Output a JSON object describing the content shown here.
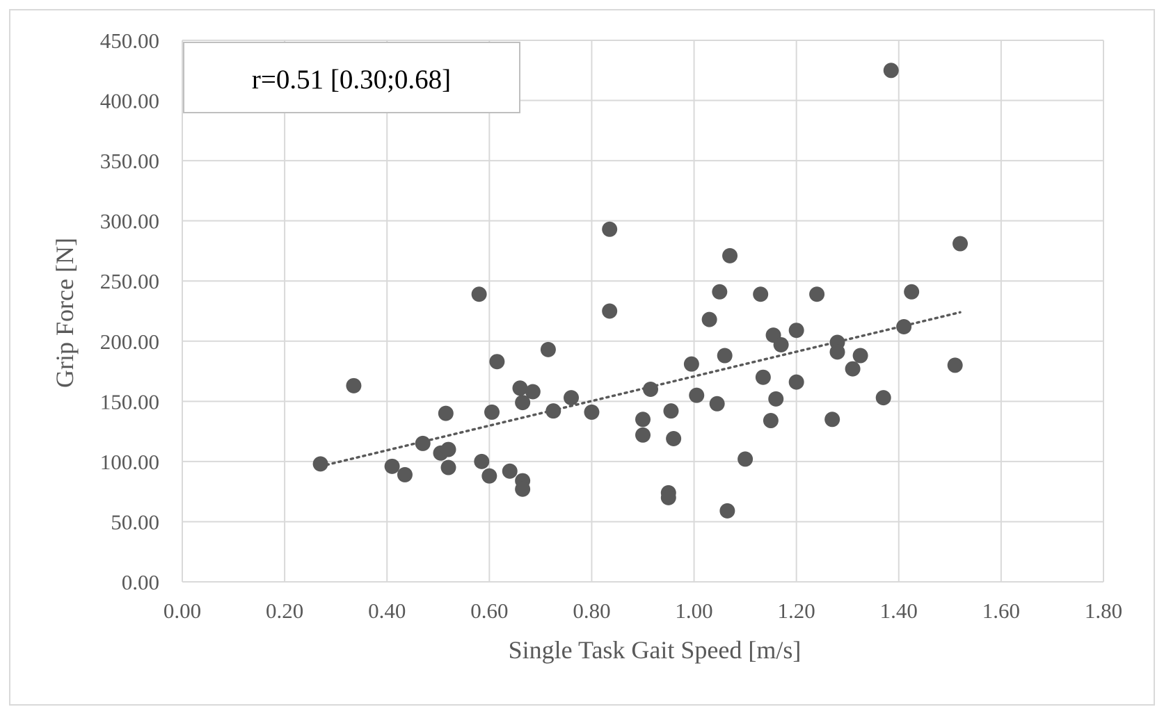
{
  "chart_data": {
    "type": "scatter",
    "title": "",
    "xlabel": "Single Task Gait Speed  [m/s]",
    "ylabel": "Grip Force [N]",
    "xlim": [
      0,
      1.8
    ],
    "ylim": [
      0,
      450
    ],
    "x_ticks": [
      "0.00",
      "0.20",
      "0.40",
      "0.60",
      "0.80",
      "1.00",
      "1.20",
      "1.40",
      "1.60",
      "1.80"
    ],
    "y_ticks": [
      "0.00",
      "50.00",
      "100.00",
      "150.00",
      "200.00",
      "250.00",
      "300.00",
      "350.00",
      "400.00",
      "450.00"
    ],
    "grid": true,
    "legend": "none",
    "annotation": "r=0.51 [0.30;0.68]",
    "colors": {
      "points": "#595959",
      "trendline": "#595959",
      "grid": "#d9d9d9",
      "axis_text": "#595959"
    },
    "trendline": {
      "style": "dotted",
      "x": [
        0.27,
        1.52
      ],
      "y": [
        96,
        224
      ]
    },
    "series": [
      {
        "points": [
          [
            0.27,
            98
          ],
          [
            0.335,
            163
          ],
          [
            0.41,
            96
          ],
          [
            0.435,
            89
          ],
          [
            0.47,
            115
          ],
          [
            0.505,
            107
          ],
          [
            0.515,
            140
          ],
          [
            0.52,
            110
          ],
          [
            0.52,
            95
          ],
          [
            0.58,
            239
          ],
          [
            0.585,
            100
          ],
          [
            0.6,
            88
          ],
          [
            0.605,
            141
          ],
          [
            0.615,
            183
          ],
          [
            0.64,
            92
          ],
          [
            0.66,
            161
          ],
          [
            0.665,
            149
          ],
          [
            0.665,
            84
          ],
          [
            0.665,
            77
          ],
          [
            0.685,
            158
          ],
          [
            0.715,
            193
          ],
          [
            0.725,
            142
          ],
          [
            0.76,
            153
          ],
          [
            0.8,
            141
          ],
          [
            0.835,
            293
          ],
          [
            0.835,
            225
          ],
          [
            0.9,
            135
          ],
          [
            0.9,
            122
          ],
          [
            0.915,
            160
          ],
          [
            0.95,
            74
          ],
          [
            0.95,
            70
          ],
          [
            0.955,
            142
          ],
          [
            0.96,
            119
          ],
          [
            0.995,
            181
          ],
          [
            1.005,
            155
          ],
          [
            1.03,
            218
          ],
          [
            1.045,
            148
          ],
          [
            1.05,
            241
          ],
          [
            1.06,
            188
          ],
          [
            1.065,
            59
          ],
          [
            1.07,
            271
          ],
          [
            1.1,
            102
          ],
          [
            1.13,
            239
          ],
          [
            1.135,
            170
          ],
          [
            1.15,
            134
          ],
          [
            1.155,
            205
          ],
          [
            1.16,
            152
          ],
          [
            1.17,
            197
          ],
          [
            1.2,
            209
          ],
          [
            1.2,
            166
          ],
          [
            1.24,
            239
          ],
          [
            1.27,
            135
          ],
          [
            1.28,
            199
          ],
          [
            1.28,
            191
          ],
          [
            1.31,
            177
          ],
          [
            1.325,
            188
          ],
          [
            1.37,
            153
          ],
          [
            1.385,
            425
          ],
          [
            1.41,
            212
          ],
          [
            1.425,
            241
          ],
          [
            1.51,
            180
          ],
          [
            1.52,
            281
          ]
        ]
      }
    ]
  }
}
